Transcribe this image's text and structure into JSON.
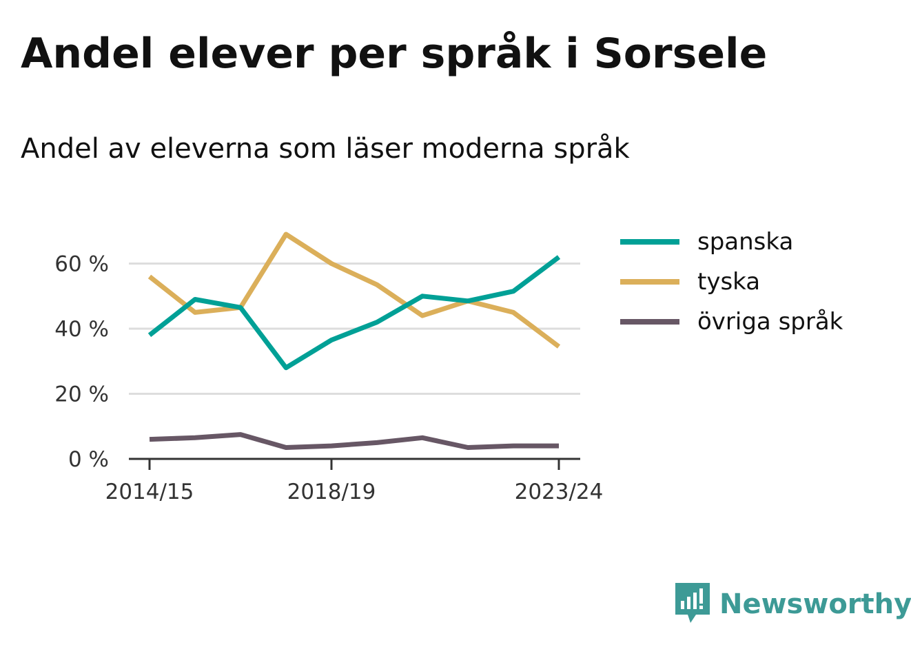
{
  "title": "Andel elever per språk i Sorsele",
  "subtitle": "Andel av eleverna som läser moderna språk",
  "brand": {
    "name": "Newsworthy",
    "color": "#3d9a96",
    "icon": "newsworthy-logo-icon"
  },
  "chart_data": {
    "type": "line",
    "x": [
      "2014/15",
      "2015/16",
      "2016/17",
      "2017/18",
      "2018/19",
      "2019/20",
      "2020/21",
      "2021/22",
      "2022/23",
      "2023/24"
    ],
    "x_tick_labels": [
      "2014/15",
      "2018/19",
      "2023/24"
    ],
    "y_ticks": [
      {
        "value": 0,
        "label": "0 %"
      },
      {
        "value": 20,
        "label": "20 %"
      },
      {
        "value": 40,
        "label": "40 %"
      },
      {
        "value": 60,
        "label": "60 %"
      }
    ],
    "ylim": [
      0,
      70
    ],
    "grid": true,
    "legend_position": "right",
    "series": [
      {
        "name": "spanska",
        "color": "#00a096",
        "values": [
          38,
          49,
          46.5,
          28,
          36.5,
          42,
          50,
          48.5,
          51.5,
          62
        ]
      },
      {
        "name": "tyska",
        "color": "#dbaf5a",
        "values": [
          56,
          45,
          46.5,
          69,
          60,
          53.5,
          44,
          48.5,
          45,
          34.5
        ]
      },
      {
        "name": "övriga språk",
        "color": "#675765",
        "values": [
          6,
          6.5,
          7.5,
          3.5,
          4,
          5,
          6.5,
          3.5,
          4,
          4
        ]
      }
    ]
  }
}
